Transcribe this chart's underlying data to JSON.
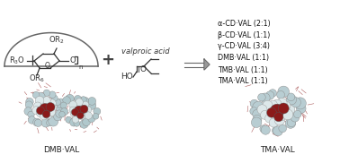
{
  "background_color": "#ffffff",
  "product_lines": [
    "α-CD·VAL (2:1)",
    "β-CD·VAL (1:1)",
    "γ-CD·VAL (3:4)",
    "DMB·VAL (1:1)",
    "TMB·VAL (1:1)",
    "TMA·VAL (1:1)"
  ],
  "label_dmb": "DMB·VAL",
  "label_tma": "TMA·VAL",
  "valproic_label": "valproic acid",
  "fig_width": 3.78,
  "fig_height": 1.82,
  "dpi": 100,
  "col_dark": "#333333",
  "col_atom_gray": "#b8cdd0",
  "col_atom_dark": "#7a9aa0",
  "col_atom_red": "#8b1a1a",
  "col_atom_white": "#e8e8e8"
}
